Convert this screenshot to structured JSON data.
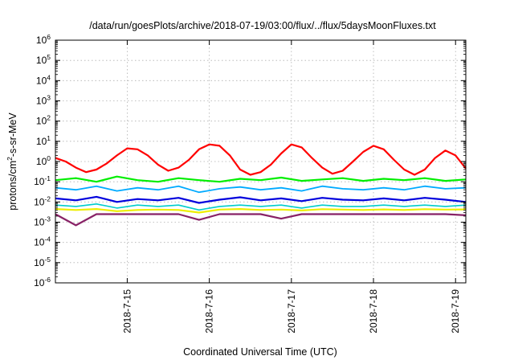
{
  "chart_data": {
    "type": "line",
    "title": "/data/run/goesPlots/archive/2018-07-19/03:00/flux/../flux/5daysMoonFluxes.txt",
    "xlabel": "Coordinated Universal Time (UTC)",
    "ylabel": "protons/cm²-s-sr-MeV",
    "ylabel_parts": {
      "pre": "protons/cm",
      "sup": "2",
      "post": "-s-sr-MeV"
    },
    "y_scale": "log",
    "ylim": [
      1e-06,
      1000000.0
    ],
    "y_ticks": [
      {
        "value": 1e-06,
        "base": "10",
        "exp": "-6"
      },
      {
        "value": 1e-05,
        "base": "10",
        "exp": "-5"
      },
      {
        "value": 0.0001,
        "base": "10",
        "exp": "-4"
      },
      {
        "value": 0.001,
        "base": "10",
        "exp": "-3"
      },
      {
        "value": 0.01,
        "base": "10",
        "exp": "-2"
      },
      {
        "value": 0.1,
        "base": "10",
        "exp": "-1"
      },
      {
        "value": 1.0,
        "base": "10",
        "exp": "0"
      },
      {
        "value": 10.0,
        "base": "10",
        "exp": "1"
      },
      {
        "value": 100.0,
        "base": "10",
        "exp": "2"
      },
      {
        "value": 1000.0,
        "base": "10",
        "exp": "3"
      },
      {
        "value": 10000.0,
        "base": "10",
        "exp": "4"
      },
      {
        "value": 100000.0,
        "base": "10",
        "exp": "5"
      },
      {
        "value": 1000000.0,
        "base": "10",
        "exp": "6"
      }
    ],
    "xlim": [
      "2018-07-14 03:00",
      "2018-07-19 03:00"
    ],
    "x_ticks": [
      "2018-7-15",
      "2018-7-16",
      "2018-7-17",
      "2018-7-18",
      "2018-7-19"
    ],
    "grid": true,
    "legend": "none",
    "series": [
      {
        "color": "#ff0000",
        "width": 2.2,
        "x": [
          "2018-07-14 03:00",
          "2018-07-14 06:00",
          "2018-07-14 09:00",
          "2018-07-14 12:00",
          "2018-07-14 15:00",
          "2018-07-14 18:00",
          "2018-07-14 21:00",
          "2018-07-15 00:00",
          "2018-07-15 03:00",
          "2018-07-15 06:00",
          "2018-07-15 09:00",
          "2018-07-15 12:00",
          "2018-07-15 15:00",
          "2018-07-15 18:00",
          "2018-07-15 21:00",
          "2018-07-16 00:00",
          "2018-07-16 03:00",
          "2018-07-16 06:00",
          "2018-07-16 09:00",
          "2018-07-16 12:00",
          "2018-07-16 15:00",
          "2018-07-16 18:00",
          "2018-07-16 21:00",
          "2018-07-17 00:00",
          "2018-07-17 03:00",
          "2018-07-17 06:00",
          "2018-07-17 09:00",
          "2018-07-17 12:00",
          "2018-07-17 15:00",
          "2018-07-17 18:00",
          "2018-07-17 21:00",
          "2018-07-18 00:00",
          "2018-07-18 03:00",
          "2018-07-18 06:00",
          "2018-07-18 09:00",
          "2018-07-18 12:00",
          "2018-07-18 15:00",
          "2018-07-18 18:00",
          "2018-07-18 21:00",
          "2018-07-19 00:00",
          "2018-07-19 03:00"
        ],
        "values": [
          1.5,
          1.0,
          0.5,
          0.3,
          0.4,
          0.8,
          2.0,
          4.5,
          4.0,
          2.0,
          0.7,
          0.35,
          0.5,
          1.2,
          4.0,
          7.0,
          6.0,
          2.0,
          0.4,
          0.22,
          0.3,
          0.7,
          2.5,
          7.0,
          5.0,
          1.5,
          0.5,
          0.25,
          0.35,
          1.0,
          3.0,
          6.0,
          4.0,
          1.2,
          0.4,
          0.22,
          0.4,
          1.5,
          3.5,
          2.0,
          0.45
        ]
      },
      {
        "color": "#00ee00",
        "width": 2.2,
        "x": [
          "2018-07-14 03:00",
          "2018-07-14 09:00",
          "2018-07-14 15:00",
          "2018-07-14 21:00",
          "2018-07-15 03:00",
          "2018-07-15 09:00",
          "2018-07-15 15:00",
          "2018-07-15 21:00",
          "2018-07-16 03:00",
          "2018-07-16 09:00",
          "2018-07-16 15:00",
          "2018-07-16 21:00",
          "2018-07-17 03:00",
          "2018-07-17 09:00",
          "2018-07-17 15:00",
          "2018-07-17 21:00",
          "2018-07-18 03:00",
          "2018-07-18 09:00",
          "2018-07-18 15:00",
          "2018-07-18 21:00",
          "2018-07-19 03:00"
        ],
        "values": [
          0.12,
          0.15,
          0.1,
          0.18,
          0.12,
          0.1,
          0.15,
          0.12,
          0.1,
          0.14,
          0.12,
          0.16,
          0.11,
          0.13,
          0.15,
          0.11,
          0.14,
          0.12,
          0.15,
          0.11,
          0.13
        ]
      },
      {
        "color": "#00aaff",
        "width": 1.8,
        "x": [
          "2018-07-14 03:00",
          "2018-07-14 09:00",
          "2018-07-14 15:00",
          "2018-07-14 21:00",
          "2018-07-15 03:00",
          "2018-07-15 09:00",
          "2018-07-15 15:00",
          "2018-07-15 21:00",
          "2018-07-16 03:00",
          "2018-07-16 09:00",
          "2018-07-16 15:00",
          "2018-07-16 21:00",
          "2018-07-17 03:00",
          "2018-07-17 09:00",
          "2018-07-17 15:00",
          "2018-07-17 21:00",
          "2018-07-18 03:00",
          "2018-07-18 09:00",
          "2018-07-18 15:00",
          "2018-07-18 21:00",
          "2018-07-19 03:00"
        ],
        "values": [
          0.05,
          0.04,
          0.06,
          0.035,
          0.05,
          0.04,
          0.06,
          0.03,
          0.045,
          0.055,
          0.04,
          0.05,
          0.035,
          0.06,
          0.045,
          0.04,
          0.05,
          0.04,
          0.06,
          0.045,
          0.05
        ]
      },
      {
        "color": "#0000dd",
        "width": 2.2,
        "x": [
          "2018-07-14 03:00",
          "2018-07-14 09:00",
          "2018-07-14 15:00",
          "2018-07-14 21:00",
          "2018-07-15 03:00",
          "2018-07-15 09:00",
          "2018-07-15 15:00",
          "2018-07-15 21:00",
          "2018-07-16 03:00",
          "2018-07-16 09:00",
          "2018-07-16 15:00",
          "2018-07-16 21:00",
          "2018-07-17 03:00",
          "2018-07-17 09:00",
          "2018-07-17 15:00",
          "2018-07-17 21:00",
          "2018-07-18 03:00",
          "2018-07-18 09:00",
          "2018-07-18 15:00",
          "2018-07-18 21:00",
          "2018-07-19 03:00"
        ],
        "values": [
          0.015,
          0.012,
          0.018,
          0.01,
          0.014,
          0.012,
          0.016,
          0.009,
          0.013,
          0.017,
          0.012,
          0.015,
          0.011,
          0.016,
          0.013,
          0.012,
          0.015,
          0.012,
          0.016,
          0.013,
          0.01
        ]
      },
      {
        "color": "#00cccc",
        "width": 1.6,
        "x": [
          "2018-07-14 03:00",
          "2018-07-14 09:00",
          "2018-07-14 15:00",
          "2018-07-14 21:00",
          "2018-07-15 03:00",
          "2018-07-15 09:00",
          "2018-07-15 15:00",
          "2018-07-15 21:00",
          "2018-07-16 03:00",
          "2018-07-16 09:00",
          "2018-07-16 15:00",
          "2018-07-16 21:00",
          "2018-07-17 03:00",
          "2018-07-17 09:00",
          "2018-07-17 15:00",
          "2018-07-17 21:00",
          "2018-07-18 03:00",
          "2018-07-18 09:00",
          "2018-07-18 15:00",
          "2018-07-18 21:00",
          "2018-07-19 03:00"
        ],
        "values": [
          0.007,
          0.006,
          0.008,
          0.005,
          0.007,
          0.006,
          0.007,
          0.004,
          0.006,
          0.007,
          0.006,
          0.007,
          0.005,
          0.007,
          0.006,
          0.006,
          0.007,
          0.006,
          0.007,
          0.006,
          0.007
        ]
      },
      {
        "color": "#eeee00",
        "width": 2.2,
        "x": [
          "2018-07-14 03:00",
          "2018-07-14 09:00",
          "2018-07-14 15:00",
          "2018-07-14 21:00",
          "2018-07-15 03:00",
          "2018-07-15 09:00",
          "2018-07-15 15:00",
          "2018-07-15 21:00",
          "2018-07-16 03:00",
          "2018-07-16 09:00",
          "2018-07-16 15:00",
          "2018-07-16 21:00",
          "2018-07-17 03:00",
          "2018-07-17 09:00",
          "2018-07-17 15:00",
          "2018-07-17 21:00",
          "2018-07-18 03:00",
          "2018-07-18 09:00",
          "2018-07-18 15:00",
          "2018-07-18 21:00",
          "2018-07-19 03:00"
        ],
        "values": [
          0.0045,
          0.004,
          0.0045,
          0.0035,
          0.004,
          0.0042,
          0.004,
          0.003,
          0.0042,
          0.0045,
          0.004,
          0.0042,
          0.0038,
          0.0044,
          0.0042,
          0.004,
          0.0043,
          0.004,
          0.0044,
          0.0042,
          0.0043
        ]
      },
      {
        "color": "#882266",
        "width": 2.2,
        "x": [
          "2018-07-14 03:00",
          "2018-07-14 09:00",
          "2018-07-14 15:00",
          "2018-07-14 21:00",
          "2018-07-15 03:00",
          "2018-07-15 09:00",
          "2018-07-15 15:00",
          "2018-07-15 21:00",
          "2018-07-16 03:00",
          "2018-07-16 09:00",
          "2018-07-16 15:00",
          "2018-07-16 21:00",
          "2018-07-17 03:00",
          "2018-07-17 09:00",
          "2018-07-17 15:00",
          "2018-07-17 21:00",
          "2018-07-18 03:00",
          "2018-07-18 09:00",
          "2018-07-18 15:00",
          "2018-07-18 21:00",
          "2018-07-19 03:00"
        ],
        "values": [
          0.0025,
          0.0007,
          0.0025,
          0.0025,
          0.0025,
          0.0025,
          0.0025,
          0.0013,
          0.0025,
          0.0025,
          0.0025,
          0.0015,
          0.0025,
          0.0025,
          0.0025,
          0.0025,
          0.0025,
          0.0025,
          0.0025,
          0.0025,
          0.0022
        ]
      }
    ]
  }
}
